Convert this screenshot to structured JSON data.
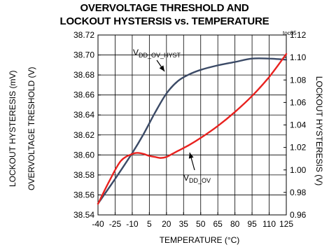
{
  "chart_data": {
    "type": "line",
    "title_line1": "OVERVOLTAGE THRESHOLD AND",
    "title_line2": "LOCKOUT HYSTERSIS vs. TEMPERATURE",
    "note": "toc05",
    "xlabel": "TEMPERATURE (°C)",
    "ylabel_left_outer": "LOCKOUT HYSTERESIS (mV)",
    "ylabel_left_inner": "OVERVOLTAGE TRESHOLD (V)",
    "ylabel_right": "LOCKOUT HYSTERESIS (V)",
    "x_ticks": [
      "-40",
      "-25",
      "-10",
      "5",
      "20",
      "35",
      "50",
      "65",
      "80",
      "95",
      "110",
      "125"
    ],
    "x_tick_values": [
      -40,
      -25,
      -10,
      5,
      20,
      35,
      50,
      65,
      80,
      95,
      110,
      125
    ],
    "xlim": [
      -40,
      125
    ],
    "y_left_ticks": [
      "38.72",
      "38.70",
      "38.68",
      "38.66",
      "38.64",
      "38.62",
      "38.60",
      "38.58",
      "38.56",
      "38.54"
    ],
    "ylim_left": [
      38.54,
      38.72
    ],
    "y_right_ticks": [
      "1.12",
      "1.10",
      "1.08",
      "1.06",
      "1.04",
      "1.02",
      "1.00",
      "0.98",
      "0.96"
    ],
    "ylim_right": [
      0.96,
      1.12
    ],
    "grid": true,
    "series": [
      {
        "name": "VDD_OV_HYST",
        "label_main": "V",
        "label_sub": "DD_OV_HYST",
        "axis": "right",
        "color": "#3b4a66",
        "x": [
          -40,
          -25,
          -10,
          0,
          10,
          20,
          30,
          40,
          50,
          65,
          80,
          95,
          110,
          125
        ],
        "y": [
          0.97,
          0.992,
          1.015,
          1.032,
          1.051,
          1.068,
          1.079,
          1.085,
          1.089,
          1.093,
          1.096,
          1.099,
          1.099,
          1.098
        ]
      },
      {
        "name": "VDD_OV",
        "label_main": "V",
        "label_sub": "DD_OV",
        "axis": "left",
        "color": "#e8221f",
        "x": [
          -40,
          -30,
          -20,
          -10,
          -5,
          0,
          5,
          10,
          15,
          20,
          25,
          30,
          40,
          50,
          65,
          80,
          95,
          110,
          125
        ],
        "y": [
          38.551,
          38.574,
          38.594,
          38.601,
          38.602,
          38.601,
          38.599,
          38.598,
          38.597,
          38.598,
          38.601,
          38.604,
          38.61,
          38.617,
          38.629,
          38.643,
          38.659,
          38.678,
          38.701
        ]
      }
    ]
  }
}
